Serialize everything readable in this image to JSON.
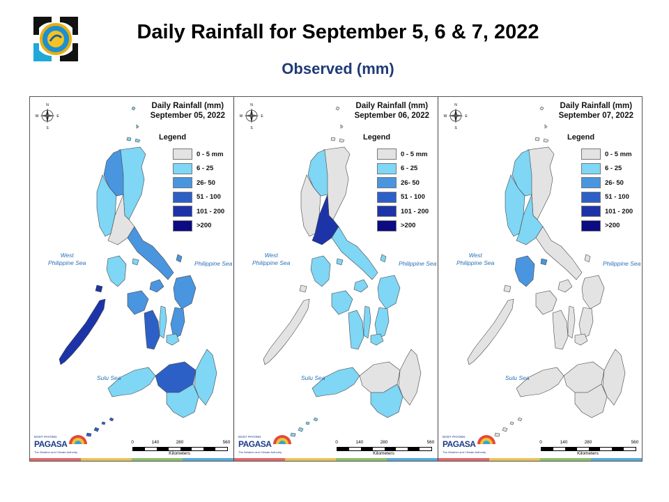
{
  "header": {
    "title": "Daily Rainfall for September 5, 6 & 7, 2022",
    "subtitle": "Observed (mm)",
    "logo_icon": "pagasa-seal-icon"
  },
  "legend": {
    "title": "Legend",
    "classes": [
      {
        "label": "0 - 5 mm",
        "color": "#e3e3e3"
      },
      {
        "label": "6 - 25",
        "color": "#7fd6f5"
      },
      {
        "label": "26- 50",
        "color": "#4a95df"
      },
      {
        "label": "51 - 100",
        "color": "#2d60c7"
      },
      {
        "label": "101 - 200",
        "color": "#1d34a8"
      },
      {
        "label": ">200",
        "color": "#0c0b82"
      }
    ]
  },
  "labels": {
    "west_sea_1": "West",
    "west_sea_2": "Philippine Sea",
    "east_sea": "Philippine Sea",
    "sulu_sea": "Sulu Sea",
    "scale_ticks": [
      "0",
      "140",
      "280",
      "560"
    ],
    "scale_unit": "Kilometers",
    "compass_n": "N",
    "compass_s": "S",
    "compass_e": "E",
    "compass_w": "W",
    "brand_small": "DOST",
    "brand_top": "PAYONG",
    "brand_name": "PAGASA",
    "brand_tag": "The Weather and Climate Authority"
  },
  "maps": [
    {
      "heading": "Daily Rainfall (mm)",
      "date": "September 05, 2022",
      "regions": {
        "luzon_west": 1,
        "luzon_nw": 2,
        "luzon_ne": 1,
        "central_luzon": 0,
        "mindoro": 1,
        "bicol": 2,
        "samar": 2,
        "panay": 2,
        "negros": 3,
        "cebu": 1,
        "leyte": 2,
        "palawan": 4,
        "mindanao_west": 1,
        "mindanao_central": 3,
        "mindanao_east": 1,
        "mindanao_south": 1,
        "sulu_islands": 3
      }
    },
    {
      "heading": "Daily Rainfall (mm)",
      "date": "September 06, 2022",
      "regions": {
        "luzon_west": 0,
        "luzon_nw": 1,
        "luzon_ne": 0,
        "central_luzon": 4,
        "mindoro": 1,
        "bicol": 1,
        "samar": 1,
        "panay": 1,
        "negros": 1,
        "cebu": 1,
        "leyte": 1,
        "palawan": 0,
        "mindanao_west": 1,
        "mindanao_central": 0,
        "mindanao_east": 0,
        "mindanao_south": 1,
        "sulu_islands": 1
      }
    },
    {
      "heading": "Daily Rainfall (mm)",
      "date": "September 07, 2022",
      "regions": {
        "luzon_west": 1,
        "luzon_nw": 1,
        "luzon_ne": 0,
        "central_luzon": 1,
        "mindoro": 2,
        "bicol": 0,
        "samar": 0,
        "panay": 0,
        "negros": 0,
        "cebu": 0,
        "leyte": 0,
        "palawan": 0,
        "mindanao_west": 0,
        "mindanao_central": 0,
        "mindanao_east": 0,
        "mindanao_south": 0,
        "sulu_islands": 0
      }
    }
  ],
  "strip_colors": [
    "#e06a6a",
    "#e8c35a",
    "#8fbf6a",
    "#5aa9d8"
  ]
}
